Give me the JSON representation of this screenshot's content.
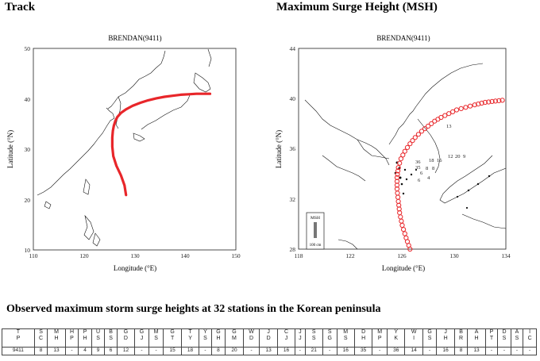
{
  "headings": {
    "track": "Track",
    "msh": "Maximum Surge Height (MSH)",
    "observed": "Observed maximum storm surge heights at 32 stations in the Korean peninsula"
  },
  "colors": {
    "track": "#e8262a",
    "coast": "#111111",
    "legend_bar": "#777777"
  },
  "chart_data": [
    {
      "type": "line",
      "title": "BRENDAN(9411)",
      "xlabel": "Longitude (°E)",
      "ylabel": "Latitude (°N)",
      "xlim": [
        110,
        150
      ],
      "ylim": [
        10,
        50
      ],
      "xticks": [
        "110",
        "120",
        "130",
        "140",
        "150"
      ],
      "yticks": [
        "10",
        "20",
        "30",
        "40",
        "50"
      ],
      "series": [
        {
          "x": [
            128.3,
            128.0,
            127.3,
            126.4,
            125.8,
            125.6,
            125.6,
            125.7,
            125.9,
            126.2,
            126.6,
            127.3,
            128.3,
            129.6,
            131.1,
            132.7,
            134.3,
            135.9,
            137.5,
            139.1,
            140.7,
            142.2,
            143.6,
            144.9
          ],
          "y": [
            20.9,
            22.8,
            24.8,
            26.7,
            28.6,
            30.5,
            32.3,
            33.6,
            34.7,
            35.6,
            36.4,
            37.2,
            37.9,
            38.6,
            39.2,
            39.7,
            40.1,
            40.4,
            40.6,
            40.8,
            40.9,
            41.0,
            41.0,
            41.0
          ]
        }
      ]
    },
    {
      "type": "line",
      "title": "BRENDAN(9411)",
      "xlabel": "Longitude (°E)",
      "ylabel": "Latitude (°N)",
      "xlim": [
        118,
        134
      ],
      "ylim": [
        28,
        44
      ],
      "xticks": [
        "118",
        "122",
        "126",
        "130",
        "134"
      ],
      "yticks": [
        "28",
        "32",
        "36",
        "40",
        "44"
      ],
      "legend": {
        "label": "MSH",
        "scale": "100 cm"
      },
      "annotations": [
        "13",
        "18",
        "16",
        "12",
        "20",
        "36",
        "35",
        "9",
        "8",
        "8",
        "6",
        "4",
        "6"
      ],
      "series": [
        {
          "x": [
            126.6,
            126.3,
            126.0,
            125.8,
            125.7,
            125.6,
            125.6,
            125.7,
            125.9,
            126.2,
            126.6,
            127.0,
            127.5,
            128.0,
            128.5,
            129.0,
            129.6,
            130.2,
            130.9,
            131.6,
            132.4,
            133.2,
            134.0
          ],
          "y": [
            28.0,
            28.9,
            29.9,
            30.9,
            31.8,
            32.8,
            33.7,
            34.5,
            35.2,
            35.8,
            36.4,
            36.9,
            37.4,
            37.8,
            38.2,
            38.5,
            38.8,
            39.1,
            39.3,
            39.5,
            39.7,
            39.8,
            39.9
          ]
        }
      ]
    }
  ],
  "station_table": {
    "columns": [
      "TP",
      "SC",
      "MH",
      "HP",
      "PH",
      "US",
      "BS",
      "GD",
      "GJ",
      "MS",
      "GT",
      "TY",
      "YS",
      "GH",
      "GM",
      "WD",
      "JD",
      "CJ",
      "JJ",
      "SS",
      "SG",
      "MS",
      "DH",
      "MP",
      "YK",
      "WI",
      "GS",
      "JH",
      "BR",
      "AH",
      "PT",
      "DS",
      "AS",
      "IC"
    ],
    "values": [
      "9411",
      "8",
      "13",
      "-",
      "4",
      "9",
      "6",
      "12",
      "-",
      "-",
      "15",
      "18",
      "-",
      "8",
      "20",
      "-",
      "13",
      "16",
      "-",
      "21",
      "-",
      "16",
      "35",
      "-",
      "36",
      "14",
      "-",
      "16",
      "8",
      "13",
      "-",
      "-",
      "-",
      "-"
    ]
  }
}
